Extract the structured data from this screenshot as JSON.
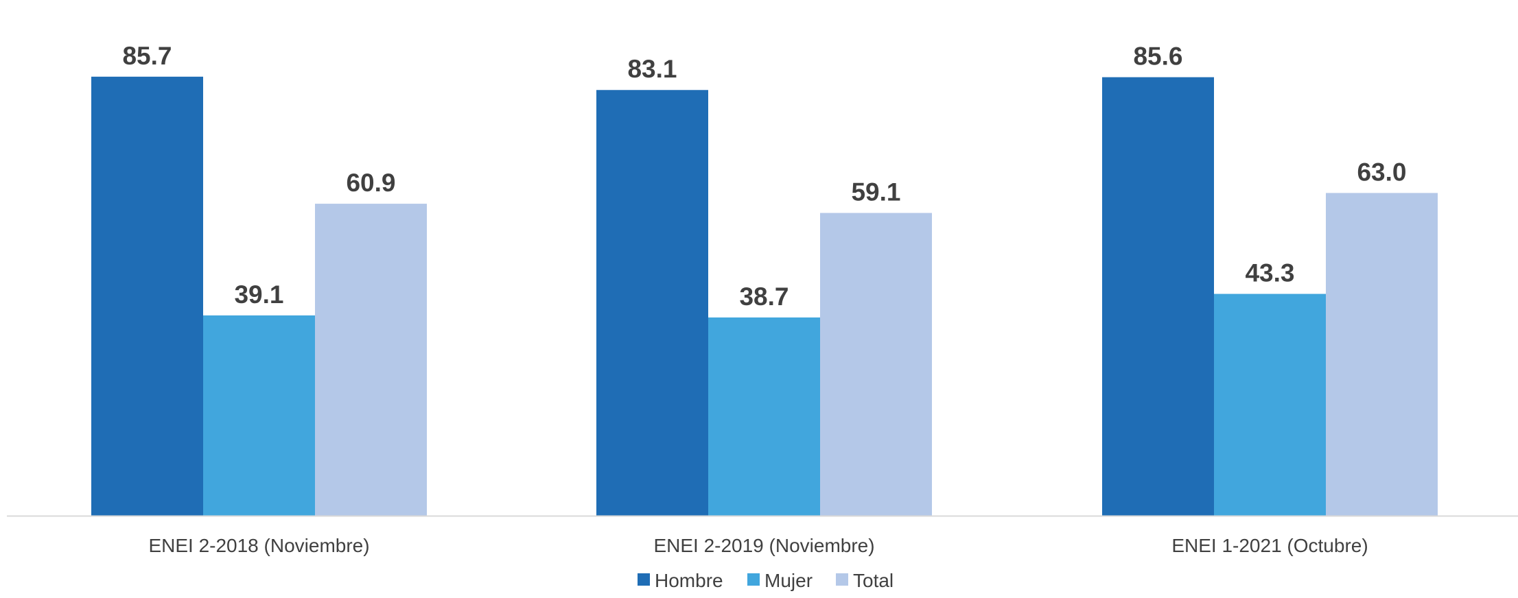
{
  "chart_data": {
    "type": "bar",
    "categories": [
      "ENEI 2-2018 (Noviembre)",
      "ENEI 2-2019 (Noviembre)",
      "ENEI 1-2021 (Octubre)"
    ],
    "series": [
      {
        "name": "Hombre",
        "color": "#1f6db5",
        "values": [
          85.7,
          83.1,
          85.6
        ]
      },
      {
        "name": "Mujer",
        "color": "#41a6dd",
        "values": [
          39.1,
          38.7,
          43.3
        ]
      },
      {
        "name": "Total",
        "color": "#b4c8e8",
        "values": [
          60.9,
          59.1,
          63.0
        ]
      }
    ],
    "value_labels": [
      [
        "85.7",
        "83.1",
        "85.6"
      ],
      [
        "39.1",
        "38.7",
        "43.3"
      ],
      [
        "60.9",
        "59.1",
        "63.0"
      ]
    ],
    "title": "",
    "xlabel": "",
    "ylabel": "",
    "ylim": [
      0,
      100
    ],
    "grid": false,
    "legend_position": "bottom",
    "axis_color": "#d9d9d9",
    "text_color": "#404040"
  }
}
